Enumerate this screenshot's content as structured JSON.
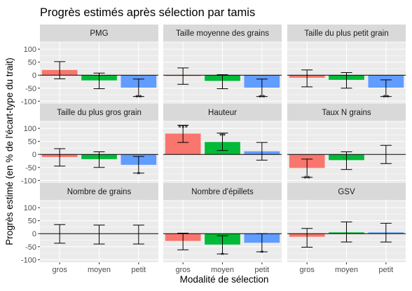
{
  "chart_data": {
    "type": "bar",
    "title": "Progrès estimés après sélection par tamis",
    "xlabel": "Modalité de sélection",
    "ylabel": "Progrès estimé (en % de l'écart-type du trait)",
    "categories": [
      "gros",
      "moyen",
      "petit"
    ],
    "ylim": [
      -110,
      130
    ],
    "yticks": [
      -100,
      -50,
      0,
      50,
      100
    ],
    "grid": true,
    "colors": {
      "gros": "#F8766D",
      "moyen": "#00BA38",
      "petit": "#619CFF"
    },
    "panels": [
      {
        "name": "PMG",
        "values": [
          20,
          -20,
          -48
        ],
        "err_low": [
          -14,
          -52,
          -82
        ],
        "err_high": [
          52,
          8,
          -15
        ],
        "sig": [
          "",
          "",
          "**"
        ],
        "show_bar": [
          true,
          true,
          true
        ]
      },
      {
        "name": "Taille moyenne des grains",
        "values": [
          -3,
          -22,
          -48
        ],
        "err_low": [
          -35,
          -52,
          -82
        ],
        "err_high": [
          28,
          2,
          -15
        ],
        "sig": [
          "",
          "",
          "**"
        ],
        "show_bar": [
          true,
          true,
          true
        ]
      },
      {
        "name": "Taille du plus petit grain",
        "values": [
          -10,
          -18,
          -48
        ],
        "err_low": [
          -45,
          -50,
          -82
        ],
        "err_high": [
          20,
          10,
          -18
        ],
        "sig": [
          "",
          "",
          "**"
        ],
        "show_bar": [
          true,
          true,
          true
        ]
      },
      {
        "name": "Taille du plus gros grain",
        "values": [
          -10,
          -18,
          -40
        ],
        "err_low": [
          -45,
          -50,
          -72
        ],
        "err_high": [
          22,
          10,
          -8
        ],
        "sig": [
          "",
          "",
          "*"
        ],
        "show_bar": [
          true,
          true,
          true
        ]
      },
      {
        "name": "Hauteur",
        "values": [
          80,
          48,
          12
        ],
        "err_low": [
          46,
          15,
          -22
        ],
        "err_high": [
          112,
          82,
          46
        ],
        "sig": [
          "***",
          "**",
          ""
        ],
        "show_bar": [
          true,
          true,
          true
        ]
      },
      {
        "name": "Taux N grains",
        "values": [
          -52,
          -22,
          0
        ],
        "err_low": [
          -88,
          -58,
          -35
        ],
        "err_high": [
          -18,
          10,
          35
        ],
        "sig": [
          "**",
          "",
          ""
        ],
        "show_bar": [
          true,
          true,
          false
        ]
      },
      {
        "name": "Nombre de grains",
        "values": [
          0,
          0,
          0
        ],
        "err_low": [
          -37,
          -40,
          -40
        ],
        "err_high": [
          35,
          33,
          33
        ],
        "sig": [
          "",
          "",
          ""
        ],
        "show_bar": [
          false,
          false,
          false
        ]
      },
      {
        "name": "Nombre d'épillets",
        "values": [
          -28,
          -42,
          -35
        ],
        "err_low": [
          -62,
          -78,
          -70
        ],
        "err_high": [
          2,
          -8,
          0
        ],
        "sig": [
          "",
          "*",
          "*"
        ],
        "show_bar": [
          true,
          true,
          true
        ]
      },
      {
        "name": "GSV",
        "values": [
          -12,
          5,
          5
        ],
        "err_low": [
          -52,
          -32,
          -32
        ],
        "err_high": [
          20,
          45,
          40
        ],
        "sig": [
          "",
          "",
          ""
        ],
        "show_bar": [
          true,
          true,
          true
        ]
      }
    ]
  }
}
